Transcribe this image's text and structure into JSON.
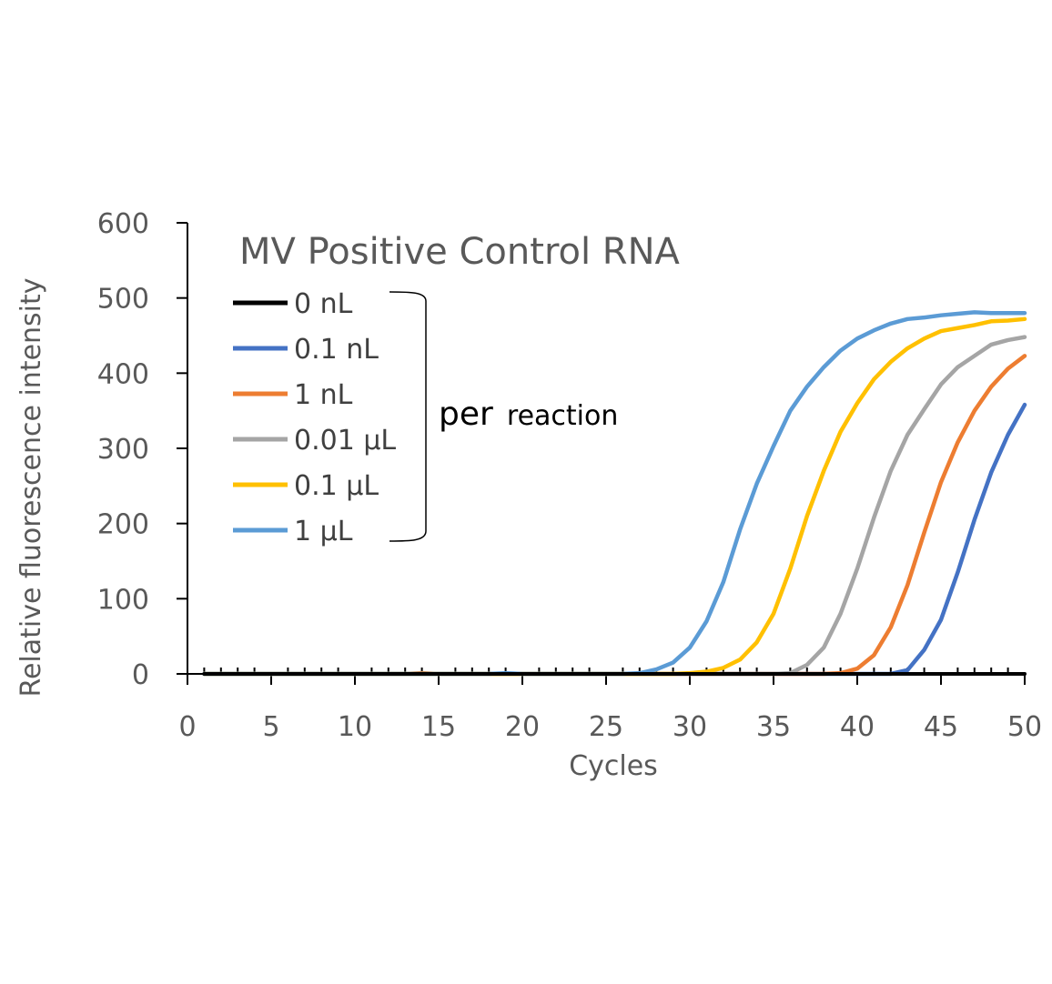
{
  "chart_data": {
    "type": "line",
    "title": "MV Positive Control RNA",
    "xlabel": "Cycles",
    "ylabel": "Relative fluorescence intensity",
    "xlim": [
      0,
      50
    ],
    "ylim": [
      0,
      600
    ],
    "xticks": [
      0,
      5,
      10,
      15,
      20,
      25,
      30,
      35,
      40,
      45,
      50
    ],
    "yticks": [
      0,
      100,
      200,
      300,
      400,
      500,
      600
    ],
    "grid": false,
    "legend_position": "top-left",
    "annotation": {
      "prefix": "per",
      "suffix": "reaction"
    },
    "x": [
      1,
      2,
      3,
      4,
      5,
      6,
      7,
      8,
      9,
      10,
      11,
      12,
      13,
      14,
      15,
      16,
      17,
      18,
      19,
      20,
      21,
      22,
      23,
      24,
      25,
      26,
      27,
      28,
      29,
      30,
      31,
      32,
      33,
      34,
      35,
      36,
      37,
      38,
      39,
      40,
      41,
      42,
      43,
      44,
      45,
      46,
      47,
      48,
      49,
      50
    ],
    "series": [
      {
        "name": "0 nL",
        "color": "#000000",
        "values": [
          0,
          0,
          0,
          0,
          0,
          0,
          0,
          0,
          0,
          0,
          0,
          0,
          0,
          0,
          0,
          0,
          0,
          0,
          0,
          0,
          0,
          0,
          0,
          0,
          0,
          0,
          0,
          0,
          0,
          0,
          0,
          0,
          0,
          0,
          0,
          0,
          0,
          0,
          0,
          0,
          0,
          0,
          0,
          0,
          0,
          0,
          0,
          0,
          0,
          0
        ]
      },
      {
        "name": "0.1 nL",
        "color": "#4472C4",
        "values": [
          0,
          0,
          0,
          0,
          0,
          0,
          0,
          0,
          0,
          0,
          0,
          0,
          0,
          0,
          0,
          0,
          0,
          0,
          0,
          0,
          0,
          0,
          0,
          0,
          0,
          0,
          0,
          0,
          0,
          0,
          0,
          0,
          0,
          0,
          0,
          0,
          0,
          0,
          0,
          0,
          0,
          0,
          5,
          32,
          72,
          135,
          205,
          268,
          318,
          358
        ]
      },
      {
        "name": "1 nL",
        "color": "#ED7D31",
        "values": [
          0,
          0,
          0,
          0,
          0,
          0,
          0,
          0,
          0,
          0,
          0,
          0,
          0,
          1,
          0,
          0,
          0,
          0,
          0,
          0,
          0,
          0,
          0,
          0,
          0,
          0,
          0,
          0,
          0,
          0,
          0,
          0,
          0,
          0,
          0,
          0,
          0,
          0,
          1,
          7,
          25,
          62,
          118,
          188,
          255,
          308,
          350,
          382,
          406,
          423
        ]
      },
      {
        "name": "0.01 µL",
        "color": "#A5A5A5",
        "values": [
          0,
          0,
          0,
          0,
          0,
          0,
          0,
          0,
          0,
          0,
          0,
          0,
          0,
          0,
          0,
          0,
          0,
          0,
          0,
          0,
          0,
          0,
          0,
          0,
          0,
          0,
          0,
          0,
          0,
          0,
          0,
          0,
          0,
          0,
          0,
          1,
          12,
          35,
          80,
          140,
          208,
          270,
          318,
          352,
          385,
          408,
          423,
          438,
          444,
          448
        ]
      },
      {
        "name": "0.1 µL",
        "color": "#FFC000",
        "values": [
          0,
          0,
          0,
          0,
          0,
          0,
          0,
          0,
          0,
          0,
          0,
          0,
          0,
          0,
          0,
          0,
          0,
          0,
          0,
          0,
          0,
          0,
          0,
          0,
          0,
          0,
          0,
          0,
          0,
          1,
          3,
          8,
          19,
          42,
          80,
          140,
          210,
          270,
          322,
          360,
          392,
          415,
          433,
          446,
          456,
          460,
          464,
          469,
          470,
          472
        ]
      },
      {
        "name": "1 µL",
        "color": "#5B9BD5",
        "values": [
          0,
          0,
          0,
          0,
          0,
          0,
          0,
          0,
          0,
          0,
          0,
          0,
          0,
          0,
          0,
          0,
          0,
          0,
          1,
          0,
          0,
          0,
          0,
          0,
          0,
          0,
          1,
          6,
          15,
          35,
          70,
          122,
          192,
          253,
          303,
          350,
          382,
          408,
          430,
          446,
          457,
          466,
          472,
          474,
          477,
          479,
          481,
          480,
          480,
          480
        ]
      }
    ]
  }
}
